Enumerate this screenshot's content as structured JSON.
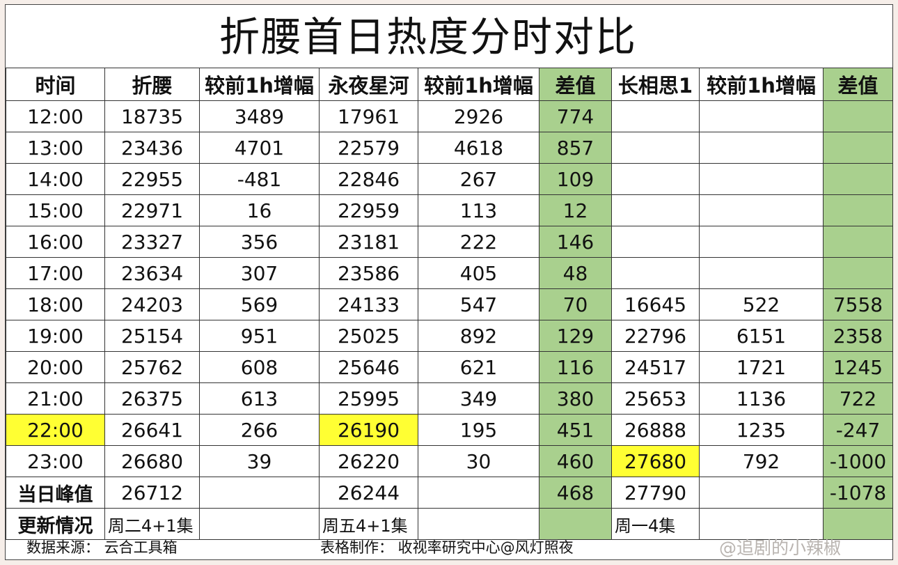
{
  "title": "折腰首日热度分时对比",
  "chart_data": {
    "type": "table",
    "columns": [
      "时间",
      "折腰",
      "较前1h增幅",
      "永夜星河",
      "较前1h增幅",
      "差值",
      "长相思1",
      "较前1h增幅",
      "差值"
    ],
    "rows": [
      [
        "12:00",
        "18735",
        "3489",
        "17961",
        "2926",
        "774",
        "",
        "",
        ""
      ],
      [
        "13:00",
        "23436",
        "4701",
        "22579",
        "4618",
        "857",
        "",
        "",
        ""
      ],
      [
        "14:00",
        "22955",
        "-481",
        "22846",
        "267",
        "109",
        "",
        "",
        ""
      ],
      [
        "15:00",
        "22971",
        "16",
        "22959",
        "113",
        "12",
        "",
        "",
        ""
      ],
      [
        "16:00",
        "23327",
        "356",
        "23181",
        "222",
        "146",
        "",
        "",
        ""
      ],
      [
        "17:00",
        "23634",
        "307",
        "23586",
        "405",
        "48",
        "",
        "",
        ""
      ],
      [
        "18:00",
        "24203",
        "569",
        "24133",
        "547",
        "70",
        "16645",
        "522",
        "7558"
      ],
      [
        "19:00",
        "25154",
        "951",
        "25025",
        "892",
        "129",
        "22796",
        "6151",
        "2358"
      ],
      [
        "20:00",
        "25762",
        "608",
        "25646",
        "621",
        "116",
        "24517",
        "1721",
        "1245"
      ],
      [
        "21:00",
        "26375",
        "613",
        "25995",
        "349",
        "380",
        "25653",
        "1136",
        "722"
      ],
      [
        "22:00",
        "26641",
        "266",
        "26190",
        "195",
        "451",
        "26888",
        "1235",
        "-247"
      ],
      [
        "23:00",
        "26680",
        "39",
        "26220",
        "30",
        "460",
        "27680",
        "792",
        "-1000"
      ],
      [
        "当日峰值",
        "26712",
        "",
        "26244",
        "",
        "468",
        "27790",
        "",
        "-1078"
      ],
      [
        "更新情况",
        "周二4+1集",
        "",
        "周五4+1集",
        "",
        "",
        "周一4集",
        "",
        ""
      ]
    ],
    "highlight_color": "#ffff33",
    "diff_column_color": "#a9d08e"
  },
  "footer": {
    "source": "数据来源：  云合工具箱",
    "maker": "表格制作：  收视率研究中心@风灯照夜",
    "watermark": "@追剧的小辣椒"
  }
}
